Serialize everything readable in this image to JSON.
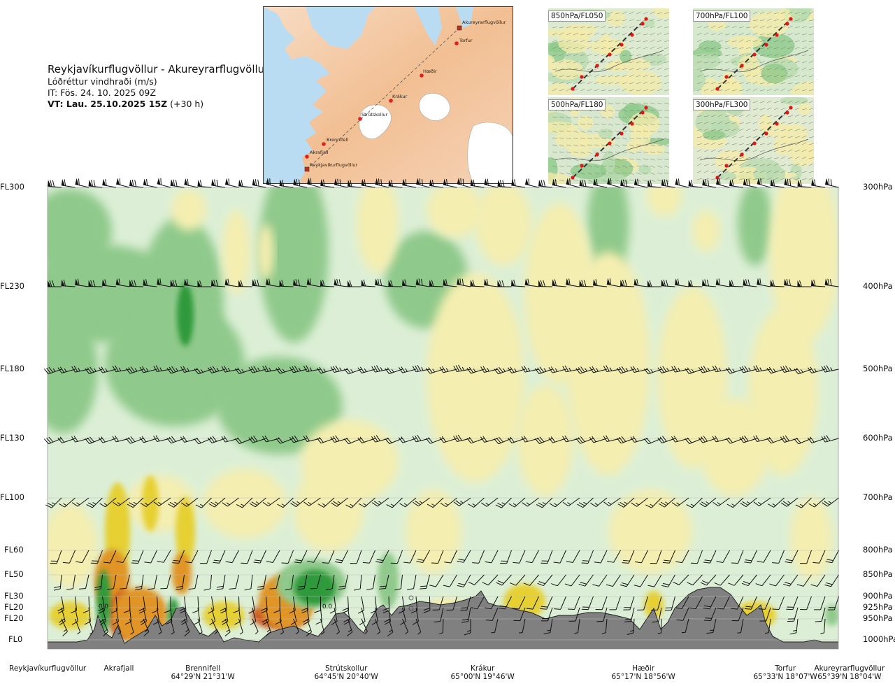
{
  "header": {
    "route": "Reykjavíkurflugvöllur - Akureyrarflugvöllur",
    "subtitle": "Lóðréttur vindhraði (m/s)",
    "issue_time": "IT: Fös. 24. 10. 2025 09Z",
    "valid_time": "VT: Lau. 25.10.2025 15Z",
    "valid_offset": "(+30 h)"
  },
  "map": {
    "points": [
      "Akureyrarflugvöllur",
      "Torfur",
      "Hæðir",
      "Krákur",
      "Strútskollur",
      "Brennifell",
      "Akrafjall",
      "Reykjavíkurflugvöllur"
    ]
  },
  "thumbnails": [
    "850hPa/FL050",
    "700hPa/FL100",
    "500hPa/FL180",
    "300hPa/FL300"
  ],
  "colors": {
    "strong_down": "#2e9a3a",
    "down": "#8fc98b",
    "weak_down": "#cfe8c9",
    "neutral": "#edf6e4",
    "weak_up": "#f4eeb0",
    "up": "#e6d030",
    "strong_up": "#e09525",
    "very_strong_up": "#cc5a20",
    "terrain": "#808080"
  },
  "chart_data": {
    "type": "heatmap",
    "title": "Lóðréttur vindhraði (m/s)",
    "y_levels": [
      {
        "fl": "FL300",
        "hpa": "300hPa"
      },
      {
        "fl": "FL230",
        "hpa": "400hPa"
      },
      {
        "fl": "FL180",
        "hpa": "500hPa"
      },
      {
        "fl": "FL130",
        "hpa": "600hPa"
      },
      {
        "fl": "FL100",
        "hpa": "700hPa"
      },
      {
        "fl": "FL60",
        "hpa": "800hPa"
      },
      {
        "fl": "FL50",
        "hpa": "850hPa"
      },
      {
        "fl": "FL30",
        "hpa": "900hPa"
      },
      {
        "fl": "FL20",
        "hpa": "925hPa"
      },
      {
        "fl": "FL20",
        "hpa": "950hPa"
      },
      {
        "fl": "FL0",
        "hpa": "1000hPa"
      }
    ],
    "waypoints": [
      {
        "name": "Reykjavíkurflugvöllur",
        "coord": "",
        "pos": 0.0
      },
      {
        "name": "Akrafjall",
        "coord": "",
        "pos": 0.09
      },
      {
        "name": "Brennifell",
        "coord": "64°29'N 21°31'W",
        "pos": 0.19
      },
      {
        "name": "Strútskollur",
        "coord": "64°45'N 20°40'W",
        "pos": 0.38
      },
      {
        "name": "Krákur",
        "coord": "65°00'N 19°46'W",
        "pos": 0.55
      },
      {
        "name": "Hæðir",
        "coord": "65°17'N 18°56'W",
        "pos": 0.73
      },
      {
        "name": "Torfur",
        "coord": "65°33'N 18°07'W",
        "pos": 0.92
      },
      {
        "name": "Akureyrarflugvöllur",
        "coord": "65°39'N 18°04'W",
        "pos": 1.0
      }
    ],
    "annotations": [
      "0.0",
      "0.0"
    ]
  }
}
